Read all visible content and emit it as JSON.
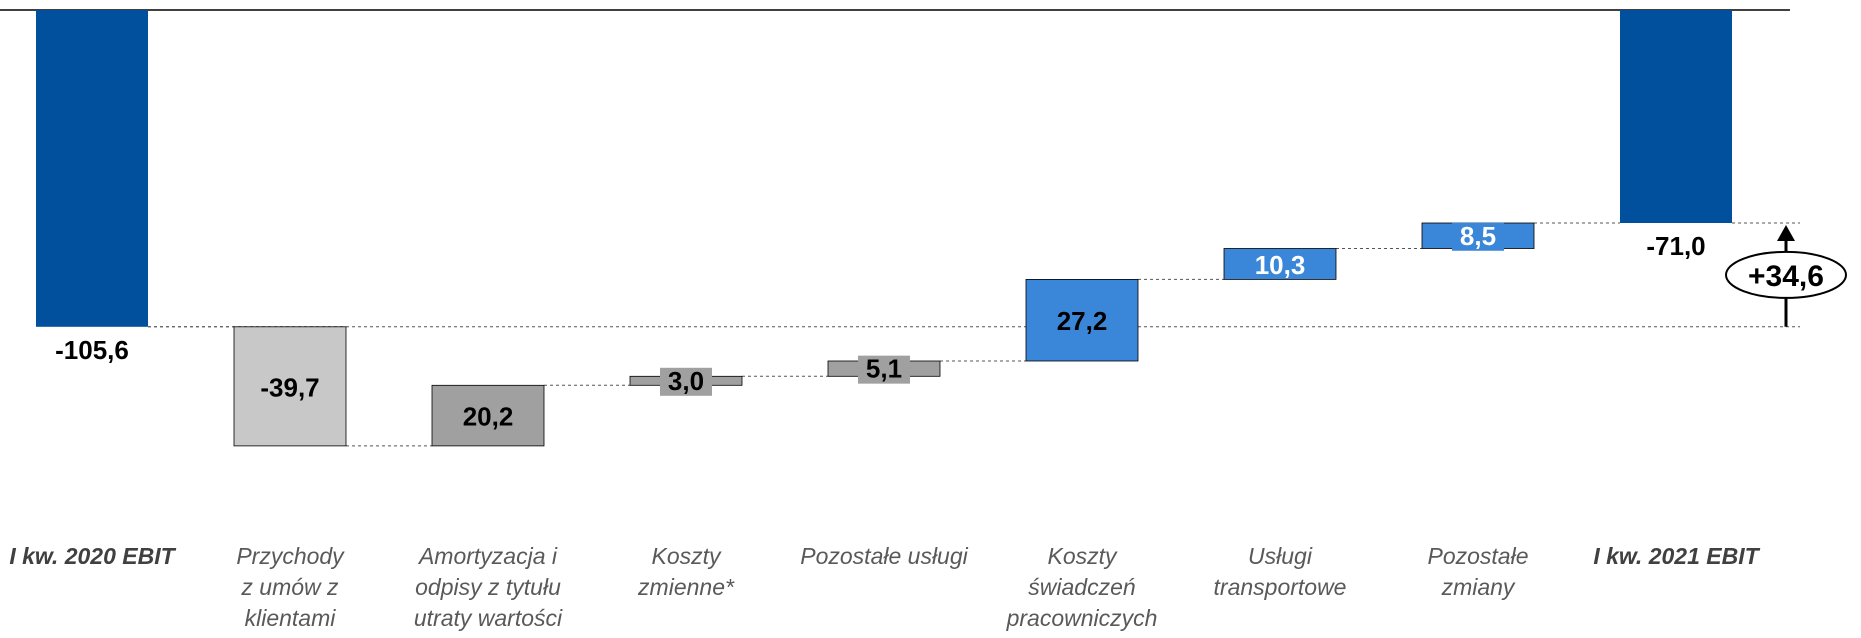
{
  "chart_data": {
    "type": "waterfall",
    "categories": [
      [
        "I kw. 2020 EBIT"
      ],
      [
        "Przychody",
        "z umów z",
        "klientami"
      ],
      [
        "Amortyzacja i",
        "odpisy z tytułu",
        "utraty wartości"
      ],
      [
        "Koszty",
        "zmienne*"
      ],
      [
        "Pozostałe usługi"
      ],
      [
        "Koszty",
        "świadczeń",
        "pracowniczych"
      ],
      [
        "Usługi",
        "transportowe"
      ],
      [
        "Pozostałe",
        "zmiany"
      ],
      [
        "I kw. 2021 EBIT"
      ]
    ],
    "values": [
      -105.6,
      -39.7,
      20.2,
      3.0,
      5.1,
      27.2,
      10.3,
      8.5,
      -71.0
    ],
    "value_labels": [
      "-105,6",
      "-39,7",
      "20,2",
      "3,0",
      "5,1",
      "27,2",
      "10,3",
      "8,5",
      "-71,0"
    ],
    "kinds": [
      "total",
      "delta",
      "delta",
      "delta",
      "delta",
      "delta",
      "delta",
      "delta",
      "total"
    ],
    "colors": [
      "#00509E",
      "#C8C8C8",
      "#A0A0A0",
      "#A0A0A0",
      "#A0A0A0",
      "#3A86D8",
      "#3A86D8",
      "#3A86D8",
      "#00509E"
    ],
    "label_colors": [
      "#000000",
      "#000000",
      "#000000",
      "#000000",
      "#000000",
      "#000000",
      "#ffffff",
      "#ffffff",
      "#000000"
    ],
    "ylim": [
      -145.3,
      0
    ],
    "change_label": "+34,6"
  }
}
